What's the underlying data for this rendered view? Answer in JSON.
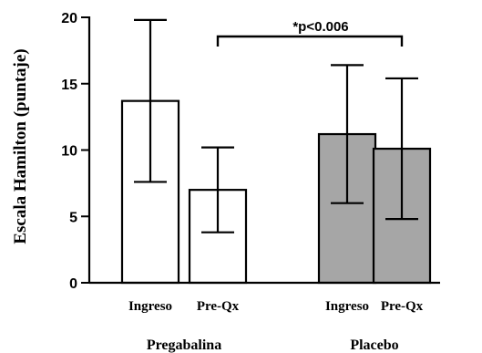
{
  "chart_data": {
    "type": "bar",
    "ylabel": "Escala Hamilton (puntaje)",
    "ylim": [
      0,
      20
    ],
    "yticks": [
      0,
      5,
      10,
      15,
      20
    ],
    "groups": [
      {
        "name": "Pregabalina",
        "bars": [
          {
            "category": "Ingreso",
            "value": 13.7,
            "error": 6.1,
            "color": "#ffffff"
          },
          {
            "category": "Pre-Qx",
            "value": 7.0,
            "error": 3.2,
            "color": "#ffffff"
          }
        ]
      },
      {
        "name": "Placebo",
        "bars": [
          {
            "category": "Ingreso",
            "value": 11.2,
            "error": 5.2,
            "color": "#a6a6a6"
          },
          {
            "category": "Pre-Qx",
            "value": 10.1,
            "error": 5.3,
            "color": "#a6a6a6"
          }
        ]
      }
    ],
    "annotations": [
      {
        "text": "*p<0.006",
        "from": "Pregabalina.Pre-Qx",
        "to": "Placebo.Pre-Qx"
      }
    ]
  }
}
